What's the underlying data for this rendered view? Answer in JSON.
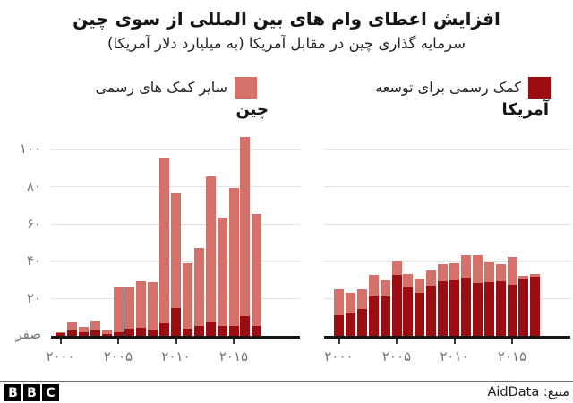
{
  "header": {
    "title": "افزایش اعطای وام های بین المللی از سوی چین",
    "subtitle": "سرمایه گذاری چین در مقابل آمریکا (به میلیارد دلار آمریکا)"
  },
  "legend": {
    "items": [
      {
        "key": "oda",
        "label": "کمک رسمی برای توسعه",
        "color": "#9b0d10"
      },
      {
        "key": "other",
        "label": "سایر کمک های رسمی",
        "color": "#d4716b"
      }
    ]
  },
  "colors": {
    "oda": "#9b0d10",
    "other": "#d4716b",
    "axis_text": "#757575",
    "gridline": "#e3e3e3",
    "baseline": "#141414"
  },
  "chart_data": {
    "type": "bar",
    "stacked": true,
    "title": "افزایش اعطای وام های بین المللی از سوی چین",
    "subtitle": "سرمایه گذاری چین در مقابل آمریکا (به میلیارد دلار آمریکا)",
    "unit": "میلیارد دلار آمریکا",
    "ylim": [
      0,
      110
    ],
    "grid": "horizontal",
    "legend_position": "top",
    "y_ticks": [
      {
        "value": 100,
        "label": "۱۰۰"
      },
      {
        "value": 80,
        "label": "۸۰"
      },
      {
        "value": 60,
        "label": "۶۰"
      },
      {
        "value": 40,
        "label": "۴۰"
      },
      {
        "value": 20,
        "label": "۲۰"
      },
      {
        "value": 0,
        "label": "صفر"
      }
    ],
    "x_ticks": [
      {
        "year": 2000,
        "label": "۲۰۰۰"
      },
      {
        "year": 2005,
        "label": "۲۰۰۵"
      },
      {
        "year": 2010,
        "label": "۲۰۱۰"
      },
      {
        "year": 2015,
        "label": "۲۰۱۵"
      }
    ],
    "years": [
      2000,
      2001,
      2002,
      2003,
      2004,
      2005,
      2006,
      2007,
      2008,
      2009,
      2010,
      2011,
      2012,
      2013,
      2014,
      2015,
      2016,
      2017
    ],
    "panels": [
      {
        "key": "china",
        "title": "چین",
        "series": [
          {
            "key": "oda",
            "name": "کمک رسمی برای توسعه",
            "values": [
              1.5,
              3,
              2,
              3,
              1,
              2,
              4,
              4.5,
              3.5,
              6.5,
              15,
              4,
              5.5,
              7,
              5.5,
              5.5,
              10.5,
              5.5
            ]
          },
          {
            "key": "other",
            "name": "سایر کمک های رسمی",
            "values": [
              0.5,
              4,
              3,
              5,
              2.5,
              24.5,
              22.5,
              24.5,
              25,
              88.5,
              61,
              35,
              41.5,
              78,
              57.5,
              73.5,
              95.5,
              59.5
            ]
          }
        ],
        "totals": [
          2,
          7,
          5,
          8,
          3.5,
          26.5,
          26.5,
          29,
          28.5,
          95,
          76,
          39,
          47,
          85,
          63,
          79,
          106,
          65
        ]
      },
      {
        "key": "usa",
        "title": "آمریکا",
        "series": [
          {
            "key": "oda",
            "name": "کمک رسمی برای توسعه",
            "values": [
              11,
              12,
              14.5,
              21,
              21,
              32.5,
              26,
              23,
              27,
              29,
              29.5,
              31,
              28,
              28.5,
              29,
              27.5,
              30,
              31.5
            ]
          },
          {
            "key": "other",
            "name": "سایر کمک های رسمی",
            "values": [
              14,
              11,
              10.5,
              11.5,
              8.5,
              7.5,
              7,
              7.5,
              8,
              9.5,
              9.5,
              12,
              15,
              11,
              9.5,
              14.5,
              2,
              1.5
            ]
          }
        ],
        "totals": [
          25,
          23,
          25,
          32.5,
          29.5,
          40,
          33,
          30.5,
          35,
          38.5,
          39,
          43,
          43,
          39.5,
          38.5,
          42,
          32,
          33
        ]
      }
    ]
  },
  "footer": {
    "source": "منبع: AidData",
    "logo_letters": [
      "B",
      "B",
      "C"
    ]
  }
}
